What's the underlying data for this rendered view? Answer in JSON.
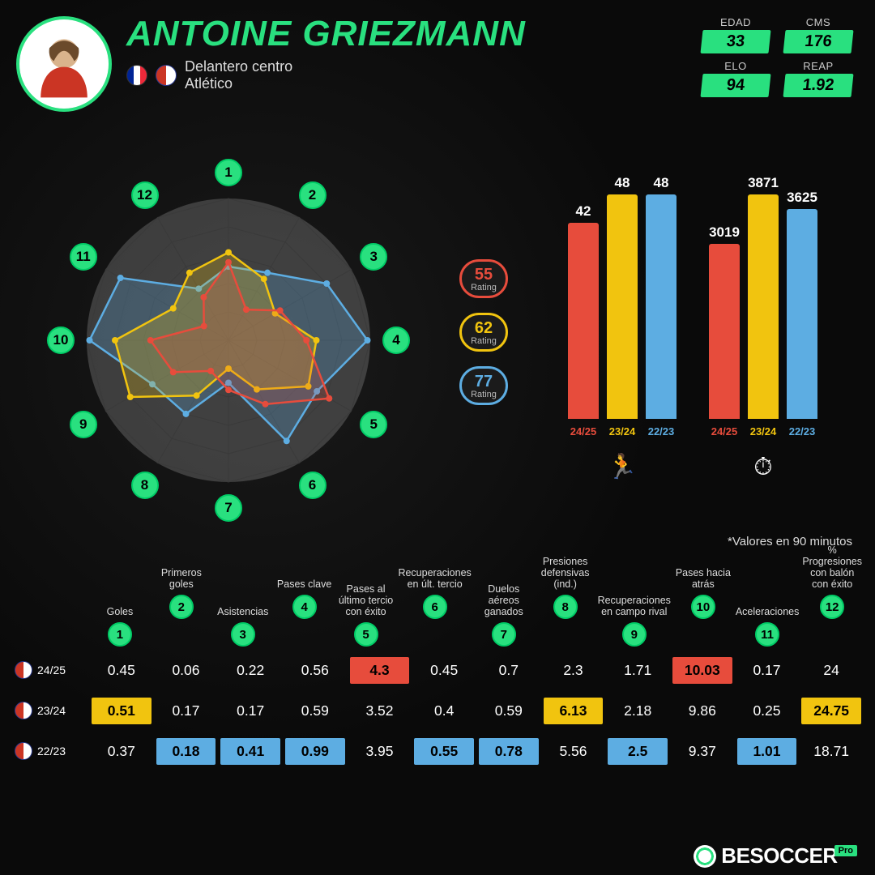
{
  "player": {
    "name": "ANTOINE GRIEZMANN",
    "position": "Delantero centro",
    "club_name": "Atlético"
  },
  "top_stats": [
    {
      "label": "EDAD",
      "value": "33"
    },
    {
      "label": "CMS",
      "value": "176"
    },
    {
      "label": "ELO",
      "value": "94"
    },
    {
      "label": "REAP",
      "value": "1.92"
    }
  ],
  "colors": {
    "accent": "#29e07f",
    "red": "#e74c3c",
    "yellow": "#f1c40f",
    "blue": "#5dade2",
    "grid": "#3a3a3a"
  },
  "ratings": [
    {
      "value": "55",
      "label": "Rating",
      "color": "#e74c3c"
    },
    {
      "value": "62",
      "label": "Rating",
      "color": "#f1c40f"
    },
    {
      "value": "77",
      "label": "Rating",
      "color": "#5dade2"
    }
  ],
  "radar": {
    "axes": 12,
    "rings": 5,
    "series": [
      {
        "color": "#5dade2",
        "fill_opacity": 0.25,
        "values": [
          0.52,
          0.55,
          0.8,
          0.98,
          0.72,
          0.82,
          0.3,
          0.6,
          0.62,
          0.98,
          0.88,
          0.42
        ]
      },
      {
        "color": "#f1c40f",
        "fill_opacity": 0.25,
        "values": [
          0.62,
          0.5,
          0.38,
          0.62,
          0.65,
          0.4,
          0.2,
          0.45,
          0.8,
          0.8,
          0.45,
          0.55
        ]
      },
      {
        "color": "#e74c3c",
        "fill_opacity": 0.2,
        "values": [
          0.55,
          0.25,
          0.42,
          0.55,
          0.82,
          0.52,
          0.35,
          0.25,
          0.45,
          0.55,
          0.2,
          0.35
        ]
      }
    ]
  },
  "bar_charts": [
    {
      "icon": "runner",
      "max": 52,
      "bars": [
        {
          "season": "24/25",
          "value": 42,
          "color": "#e74c3c"
        },
        {
          "season": "23/24",
          "value": 48,
          "color": "#f1c40f"
        },
        {
          "season": "22/23",
          "value": 48,
          "color": "#5dade2"
        }
      ]
    },
    {
      "icon": "clock",
      "max": 4200,
      "bars": [
        {
          "season": "24/25",
          "value": 3019,
          "color": "#e74c3c"
        },
        {
          "season": "23/24",
          "value": 3871,
          "color": "#f1c40f"
        },
        {
          "season": "22/23",
          "value": 3625,
          "color": "#5dade2"
        }
      ]
    }
  ],
  "note": "*Valores en 90 minutos",
  "columns": [
    {
      "n": 1,
      "label": "Goles"
    },
    {
      "n": 2,
      "label": "Primeros goles"
    },
    {
      "n": 3,
      "label": "Asistencias"
    },
    {
      "n": 4,
      "label": "Pases clave"
    },
    {
      "n": 5,
      "label": "Pases al último tercio con éxito"
    },
    {
      "n": 6,
      "label": "Recuperaciones en últ. tercio"
    },
    {
      "n": 7,
      "label": "Duelos aéreos ganados"
    },
    {
      "n": 8,
      "label": "Presiones defensivas (ind.)"
    },
    {
      "n": 9,
      "label": "Recuperaciones en campo rival"
    },
    {
      "n": 10,
      "label": "Pases hacia atrás"
    },
    {
      "n": 11,
      "label": "Aceleraciones"
    },
    {
      "n": 12,
      "label": "% Progresiones con balón con éxito"
    }
  ],
  "rows": [
    {
      "season": "24/25",
      "cells": [
        {
          "v": "0.45"
        },
        {
          "v": "0.06"
        },
        {
          "v": "0.22"
        },
        {
          "v": "0.56"
        },
        {
          "v": "4.3",
          "hl": "red"
        },
        {
          "v": "0.45"
        },
        {
          "v": "0.7"
        },
        {
          "v": "2.3"
        },
        {
          "v": "1.71"
        },
        {
          "v": "10.03",
          "hl": "red"
        },
        {
          "v": "0.17"
        },
        {
          "v": "24"
        }
      ]
    },
    {
      "season": "23/24",
      "cells": [
        {
          "v": "0.51",
          "hl": "yel"
        },
        {
          "v": "0.17"
        },
        {
          "v": "0.17"
        },
        {
          "v": "0.59"
        },
        {
          "v": "3.52"
        },
        {
          "v": "0.4"
        },
        {
          "v": "0.59"
        },
        {
          "v": "6.13",
          "hl": "yel"
        },
        {
          "v": "2.18"
        },
        {
          "v": "9.86"
        },
        {
          "v": "0.25"
        },
        {
          "v": "24.75",
          "hl": "yel"
        }
      ]
    },
    {
      "season": "22/23",
      "cells": [
        {
          "v": "0.37"
        },
        {
          "v": "0.18",
          "hl": "blu"
        },
        {
          "v": "0.41",
          "hl": "blu"
        },
        {
          "v": "0.99",
          "hl": "blu"
        },
        {
          "v": "3.95"
        },
        {
          "v": "0.55",
          "hl": "blu"
        },
        {
          "v": "0.78",
          "hl": "blu"
        },
        {
          "v": "5.56"
        },
        {
          "v": "2.5",
          "hl": "blu"
        },
        {
          "v": "9.37"
        },
        {
          "v": "1.01",
          "hl": "blu"
        },
        {
          "v": "18.71"
        }
      ]
    }
  ],
  "footer_brand": "BESOCCER",
  "footer_tag": "Pro"
}
